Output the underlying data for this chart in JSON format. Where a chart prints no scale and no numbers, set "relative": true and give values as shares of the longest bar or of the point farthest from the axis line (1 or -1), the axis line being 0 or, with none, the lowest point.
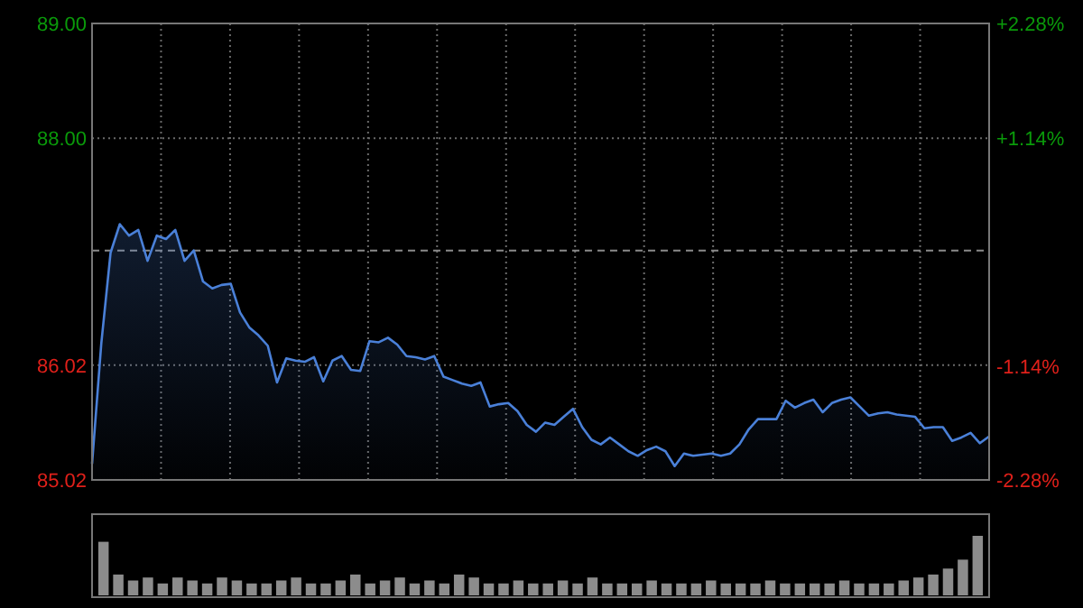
{
  "chart_data": [
    {
      "type": "area",
      "color": "#4a80d8",
      "categories": [
        null,
        null,
        null,
        null,
        null,
        null,
        null,
        null,
        null,
        null,
        null,
        null,
        null,
        null,
        null,
        null,
        null,
        null,
        null,
        null,
        null,
        null,
        null,
        null,
        null,
        null,
        null,
        null,
        null,
        null,
        null,
        null,
        null,
        null,
        null,
        null,
        null,
        null,
        null,
        null,
        null,
        null,
        null,
        null,
        null,
        null,
        null,
        null,
        null,
        null,
        null,
        null,
        null,
        null,
        null,
        null,
        null,
        null,
        null,
        null,
        null,
        null,
        null,
        null,
        null,
        null,
        null,
        null,
        null,
        null,
        null,
        null,
        null,
        null,
        null,
        null,
        null,
        null,
        null,
        null,
        null,
        null,
        null,
        null,
        null,
        null,
        null,
        null,
        null,
        null,
        null,
        null,
        null,
        null,
        null,
        null,
        null,
        null
      ],
      "values": [
        85.16,
        86.21,
        87.0,
        87.25,
        87.15,
        87.2,
        86.93,
        87.15,
        87.12,
        87.2,
        86.93,
        87.02,
        86.75,
        86.69,
        86.72,
        86.73,
        86.48,
        86.35,
        86.28,
        86.19,
        85.87,
        86.08,
        86.06,
        86.05,
        86.09,
        85.88,
        86.06,
        86.1,
        85.98,
        85.97,
        86.23,
        86.22,
        86.26,
        86.2,
        86.1,
        86.09,
        86.07,
        86.1,
        85.92,
        85.89,
        85.86,
        85.84,
        85.87,
        85.66,
        85.68,
        85.69,
        85.62,
        85.5,
        85.44,
        85.52,
        85.5,
        85.57,
        85.64,
        85.48,
        85.37,
        85.33,
        85.39,
        85.33,
        85.27,
        85.23,
        85.28,
        85.31,
        85.27,
        85.14,
        85.25,
        85.23,
        85.24,
        85.25,
        85.23,
        85.25,
        85.33,
        85.46,
        85.55,
        85.55,
        85.55,
        85.71,
        85.65,
        85.69,
        85.72,
        85.61,
        85.69,
        85.72,
        85.74,
        85.66,
        85.58,
        85.6,
        85.61,
        85.59,
        85.58,
        85.57,
        85.47,
        85.48,
        85.48,
        85.36,
        85.39,
        85.43,
        85.34,
        85.4
      ],
      "ylim": [
        85.02,
        89.0
      ],
      "yticks": [
        {
          "value": 85.02,
          "label": "85.02"
        },
        {
          "value": 86.02,
          "label": "86.02"
        },
        {
          "value": 88.0,
          "label": "88.00"
        },
        {
          "value": 89.0,
          "label": "89.00"
        }
      ],
      "y2lim": [
        -2.28,
        2.28
      ],
      "y2ticks": [
        {
          "value": -2.28,
          "label": "-2.28%"
        },
        {
          "value": -1.14,
          "label": "-1.14%"
        },
        {
          "value": 1.14,
          "label": "+1.14%"
        },
        {
          "value": 2.28,
          "label": "+2.28%"
        }
      ],
      "ref_lines": [
        {
          "axis": "y",
          "value": 87.02,
          "line_style": "dashed"
        }
      ],
      "grid": "y"
    },
    {
      "type": "bar",
      "relative": true,
      "color": "#8c8c8c",
      "categories": [
        null,
        null,
        null,
        null,
        null,
        null,
        null,
        null,
        null,
        null,
        null,
        null,
        null,
        null,
        null,
        null,
        null,
        null,
        null,
        null,
        null,
        null,
        null,
        null,
        null,
        null,
        null,
        null,
        null,
        null,
        null,
        null,
        null,
        null,
        null,
        null,
        null,
        null,
        null,
        null,
        null,
        null,
        null,
        null,
        null,
        null,
        null,
        null,
        null,
        null,
        null,
        null,
        null,
        null,
        null,
        null,
        null,
        null,
        null,
        null
      ],
      "values": [
        0.9,
        0.35,
        0.25,
        0.3,
        0.2,
        0.3,
        0.25,
        0.2,
        0.3,
        0.25,
        0.2,
        0.2,
        0.25,
        0.3,
        0.2,
        0.2,
        0.25,
        0.35,
        0.2,
        0.25,
        0.3,
        0.2,
        0.25,
        0.2,
        0.35,
        0.3,
        0.2,
        0.2,
        0.25,
        0.2,
        0.2,
        0.25,
        0.2,
        0.3,
        0.2,
        0.2,
        0.2,
        0.25,
        0.2,
        0.2,
        0.2,
        0.25,
        0.2,
        0.2,
        0.2,
        0.25,
        0.2,
        0.2,
        0.2,
        0.2,
        0.25,
        0.2,
        0.2,
        0.2,
        0.25,
        0.3,
        0.35,
        0.45,
        0.6,
        1
      ]
    }
  ]
}
